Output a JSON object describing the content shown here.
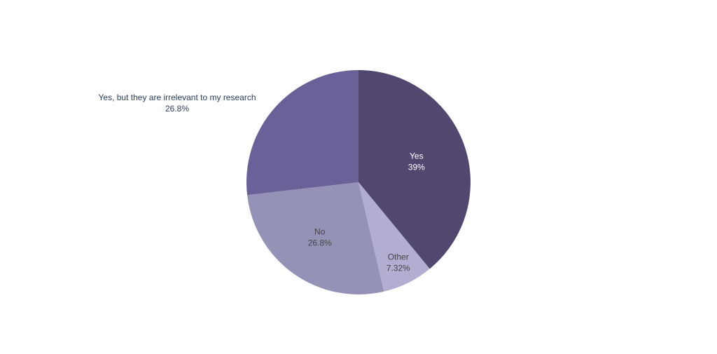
{
  "chart_data": {
    "type": "pie",
    "title": "",
    "labels": [
      "Yes",
      "Other",
      "No",
      "Yes, but they are irrelevant to my research"
    ],
    "values": [
      39,
      7.32,
      26.8,
      26.8
    ],
    "value_labels": [
      "39%",
      "7.32%",
      "26.8%",
      "26.8%"
    ],
    "colors": [
      "#51476f",
      "#b1aed2",
      "#9592b8",
      "#6b6199"
    ],
    "label_colors": [
      "#ffffff",
      "#444444",
      "#444444",
      "#2a3f5f"
    ],
    "start_angle_deg": 0,
    "direction": "clockwise",
    "legend": "none"
  }
}
